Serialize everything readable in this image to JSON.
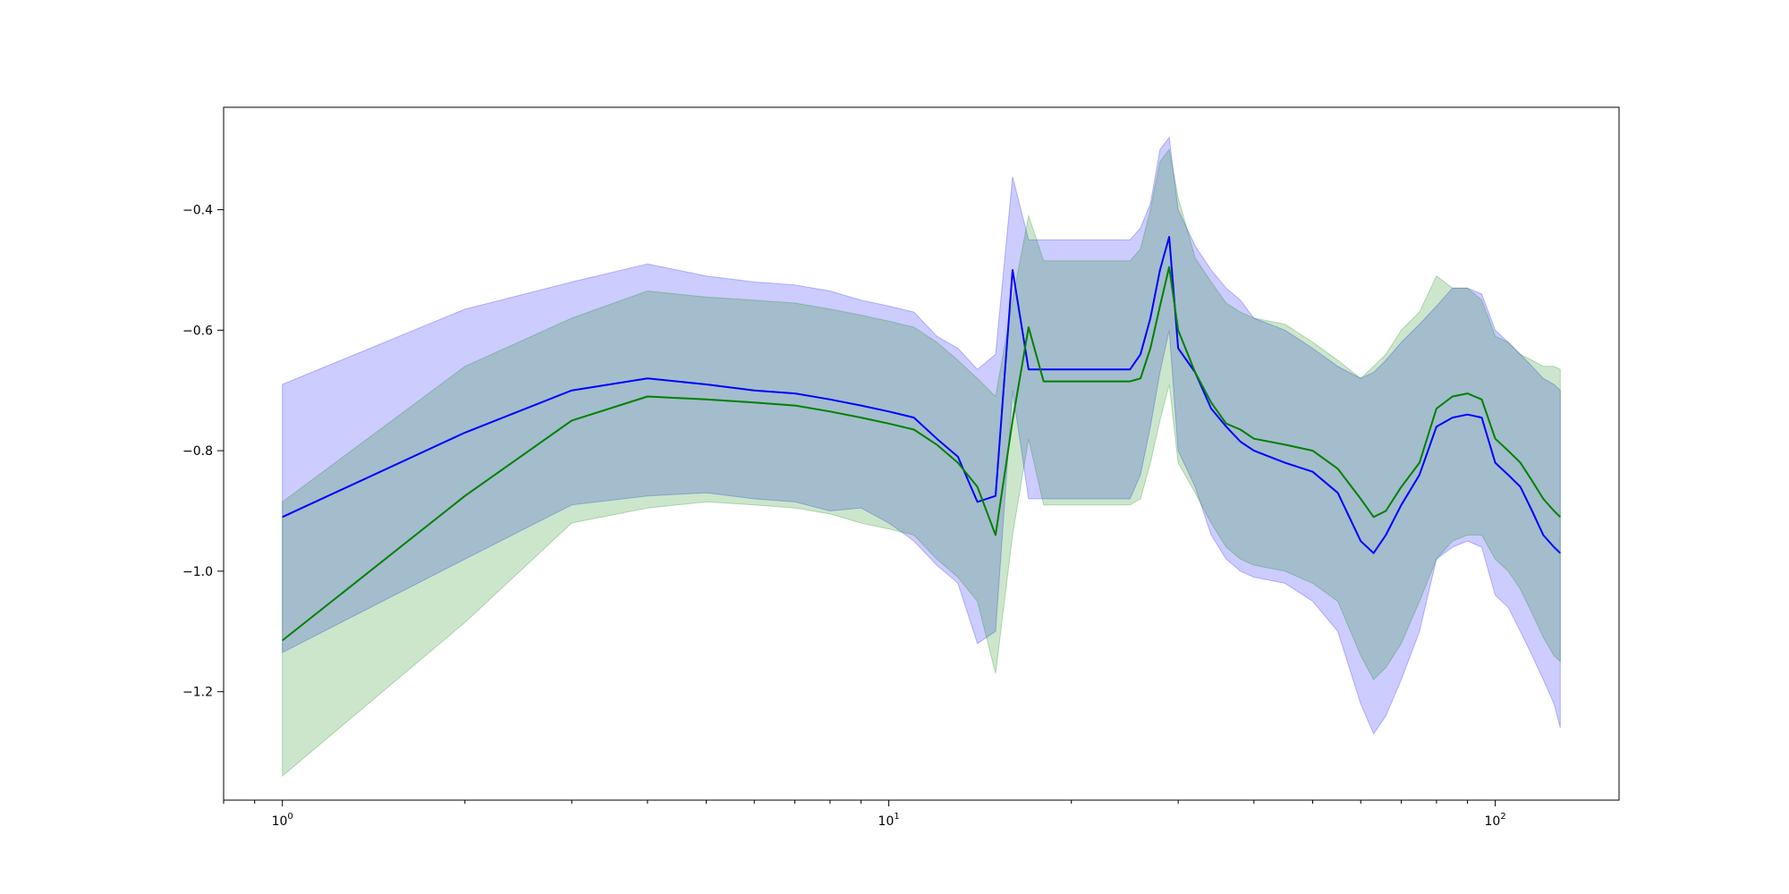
{
  "chart_data": {
    "type": "line",
    "xscale": "log",
    "xlim": [
      0.8,
      160
    ],
    "ylim": [
      -1.38,
      -0.23
    ],
    "grid": false,
    "legend": "none",
    "x_ticks": [
      {
        "value": 1,
        "base": "10",
        "exp": "0"
      },
      {
        "value": 10,
        "base": "10",
        "exp": "1"
      },
      {
        "value": 100,
        "base": "10",
        "exp": "2"
      }
    ],
    "y_ticks": [
      {
        "value": -0.4,
        "label": "−0.4"
      },
      {
        "value": -0.6,
        "label": "−0.6"
      },
      {
        "value": -0.8,
        "label": "−0.8"
      },
      {
        "value": -1.0,
        "label": "−1.0"
      },
      {
        "value": -1.2,
        "label": "−1.2"
      }
    ],
    "series": [
      {
        "color": "#0000ff",
        "band_color": "#0000ff",
        "x": [
          1,
          2,
          3,
          4,
          5,
          6,
          7,
          8,
          9,
          10,
          11,
          12,
          13,
          14,
          15,
          16,
          17,
          18,
          20,
          22,
          25,
          26,
          27,
          28,
          29,
          30,
          32,
          34,
          36,
          38,
          40,
          45,
          50,
          55,
          60,
          63,
          66,
          70,
          75,
          80,
          85,
          90,
          95,
          100,
          105,
          110,
          115,
          120,
          125,
          128
        ],
        "y": [
          -0.91,
          -0.77,
          -0.7,
          -0.68,
          -0.69,
          -0.7,
          -0.705,
          -0.715,
          -0.725,
          -0.735,
          -0.745,
          -0.78,
          -0.81,
          -0.885,
          -0.875,
          -0.5,
          -0.665,
          -0.665,
          -0.665,
          -0.665,
          -0.665,
          -0.64,
          -0.58,
          -0.5,
          -0.445,
          -0.63,
          -0.67,
          -0.73,
          -0.76,
          -0.785,
          -0.8,
          -0.82,
          -0.835,
          -0.87,
          -0.95,
          -0.97,
          -0.94,
          -0.89,
          -0.84,
          -0.76,
          -0.745,
          -0.74,
          -0.745,
          -0.82,
          -0.84,
          -0.86,
          -0.9,
          -0.94,
          -0.96,
          -0.97
        ],
        "upper": [
          -0.69,
          -0.565,
          -0.52,
          -0.49,
          -0.51,
          -0.52,
          -0.525,
          -0.535,
          -0.55,
          -0.56,
          -0.57,
          -0.61,
          -0.63,
          -0.665,
          -0.64,
          -0.345,
          -0.45,
          -0.45,
          -0.45,
          -0.45,
          -0.45,
          -0.43,
          -0.39,
          -0.3,
          -0.28,
          -0.4,
          -0.46,
          -0.5,
          -0.53,
          -0.55,
          -0.58,
          -0.6,
          -0.63,
          -0.66,
          -0.68,
          -0.67,
          -0.65,
          -0.62,
          -0.59,
          -0.56,
          -0.53,
          -0.53,
          -0.54,
          -0.6,
          -0.62,
          -0.64,
          -0.66,
          -0.68,
          -0.69,
          -0.7
        ],
        "lower": [
          -1.135,
          -0.98,
          -0.89,
          -0.875,
          -0.87,
          -0.88,
          -0.885,
          -0.9,
          -0.895,
          -0.92,
          -0.95,
          -0.99,
          -1.02,
          -1.12,
          -1.1,
          -0.7,
          -0.88,
          -0.88,
          -0.88,
          -0.88,
          -0.88,
          -0.84,
          -0.76,
          -0.67,
          -0.6,
          -0.8,
          -0.86,
          -0.94,
          -0.98,
          -1.0,
          -1.01,
          -1.02,
          -1.05,
          -1.1,
          -1.22,
          -1.27,
          -1.24,
          -1.18,
          -1.1,
          -0.98,
          -0.96,
          -0.95,
          -0.96,
          -1.04,
          -1.06,
          -1.1,
          -1.14,
          -1.18,
          -1.22,
          -1.26
        ]
      },
      {
        "color": "#008000",
        "band_color": "#008000",
        "x": [
          1,
          2,
          3,
          4,
          5,
          6,
          7,
          8,
          9,
          10,
          11,
          12,
          13,
          14,
          15,
          16,
          17,
          18,
          20,
          22,
          25,
          26,
          27,
          28,
          29,
          30,
          32,
          34,
          36,
          38,
          40,
          45,
          50,
          55,
          60,
          63,
          66,
          70,
          75,
          80,
          85,
          90,
          95,
          100,
          105,
          110,
          115,
          120,
          125,
          128
        ],
        "y": [
          -1.115,
          -0.875,
          -0.75,
          -0.71,
          -0.715,
          -0.72,
          -0.725,
          -0.735,
          -0.745,
          -0.755,
          -0.765,
          -0.79,
          -0.82,
          -0.86,
          -0.94,
          -0.75,
          -0.595,
          -0.685,
          -0.685,
          -0.685,
          -0.685,
          -0.68,
          -0.63,
          -0.56,
          -0.495,
          -0.6,
          -0.67,
          -0.72,
          -0.755,
          -0.765,
          -0.78,
          -0.79,
          -0.8,
          -0.83,
          -0.88,
          -0.91,
          -0.9,
          -0.86,
          -0.82,
          -0.73,
          -0.71,
          -0.705,
          -0.715,
          -0.78,
          -0.8,
          -0.82,
          -0.85,
          -0.88,
          -0.9,
          -0.91
        ],
        "upper": [
          -0.885,
          -0.66,
          -0.58,
          -0.535,
          -0.545,
          -0.55,
          -0.555,
          -0.565,
          -0.575,
          -0.585,
          -0.595,
          -0.62,
          -0.65,
          -0.68,
          -0.71,
          -0.55,
          -0.41,
          -0.485,
          -0.485,
          -0.485,
          -0.485,
          -0.465,
          -0.4,
          -0.32,
          -0.3,
          -0.38,
          -0.48,
          -0.52,
          -0.555,
          -0.57,
          -0.58,
          -0.59,
          -0.62,
          -0.65,
          -0.68,
          -0.66,
          -0.64,
          -0.6,
          -0.57,
          -0.51,
          -0.53,
          -0.53,
          -0.55,
          -0.61,
          -0.62,
          -0.64,
          -0.65,
          -0.66,
          -0.66,
          -0.665
        ],
        "lower": [
          -1.34,
          -1.085,
          -0.92,
          -0.895,
          -0.885,
          -0.89,
          -0.895,
          -0.905,
          -0.92,
          -0.93,
          -0.94,
          -0.98,
          -1.01,
          -1.05,
          -1.17,
          -0.94,
          -0.78,
          -0.89,
          -0.89,
          -0.89,
          -0.89,
          -0.88,
          -0.82,
          -0.75,
          -0.69,
          -0.82,
          -0.87,
          -0.92,
          -0.96,
          -0.98,
          -0.99,
          -1.0,
          -1.02,
          -1.05,
          -1.14,
          -1.18,
          -1.16,
          -1.12,
          -1.05,
          -0.98,
          -0.95,
          -0.94,
          -0.94,
          -0.98,
          -1.0,
          -1.03,
          -1.07,
          -1.11,
          -1.14,
          -1.15
        ]
      }
    ]
  }
}
